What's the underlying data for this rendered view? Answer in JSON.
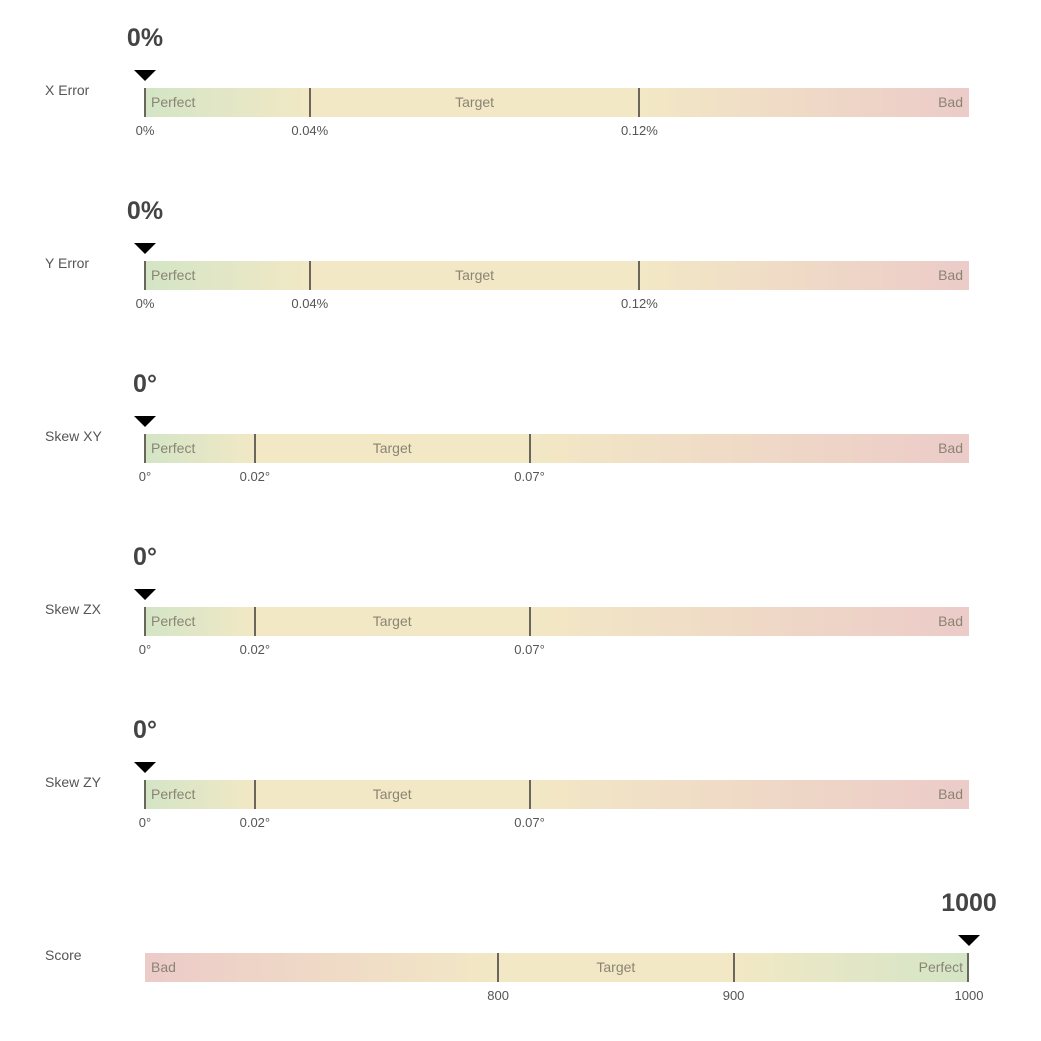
{
  "colors": {
    "perfect": "#d3e5c6",
    "target": "#f2e8c5",
    "bad": "#eccbc8"
  },
  "chart_data": [
    {
      "type": "bullet-gauge",
      "label": "X Error",
      "value": 0,
      "value_label": "0%",
      "range": [
        0,
        0.2
      ],
      "direction": "low-is-good",
      "zones": [
        "Perfect",
        "Target",
        "Bad"
      ],
      "ticks": [
        {
          "v": 0,
          "t": "0%"
        },
        {
          "v": 0.04,
          "t": "0.04%"
        },
        {
          "v": 0.12,
          "t": "0.12%"
        }
      ]
    },
    {
      "type": "bullet-gauge",
      "label": "Y Error",
      "value": 0,
      "value_label": "0%",
      "range": [
        0,
        0.2
      ],
      "direction": "low-is-good",
      "zones": [
        "Perfect",
        "Target",
        "Bad"
      ],
      "ticks": [
        {
          "v": 0,
          "t": "0%"
        },
        {
          "v": 0.04,
          "t": "0.04%"
        },
        {
          "v": 0.12,
          "t": "0.12%"
        }
      ]
    },
    {
      "type": "bullet-gauge",
      "label": "Skew XY",
      "value": 0,
      "value_label": "0°",
      "range": [
        0,
        0.15
      ],
      "direction": "low-is-good",
      "zones": [
        "Perfect",
        "Target",
        "Bad"
      ],
      "ticks": [
        {
          "v": 0,
          "t": "0°"
        },
        {
          "v": 0.02,
          "t": "0.02°"
        },
        {
          "v": 0.07,
          "t": "0.07°"
        }
      ]
    },
    {
      "type": "bullet-gauge",
      "label": "Skew ZX",
      "value": 0,
      "value_label": "0°",
      "range": [
        0,
        0.15
      ],
      "direction": "low-is-good",
      "zones": [
        "Perfect",
        "Target",
        "Bad"
      ],
      "ticks": [
        {
          "v": 0,
          "t": "0°"
        },
        {
          "v": 0.02,
          "t": "0.02°"
        },
        {
          "v": 0.07,
          "t": "0.07°"
        }
      ]
    },
    {
      "type": "bullet-gauge",
      "label": "Skew ZY",
      "value": 0,
      "value_label": "0°",
      "range": [
        0,
        0.15
      ],
      "direction": "low-is-good",
      "zones": [
        "Perfect",
        "Target",
        "Bad"
      ],
      "ticks": [
        {
          "v": 0,
          "t": "0°"
        },
        {
          "v": 0.02,
          "t": "0.02°"
        },
        {
          "v": 0.07,
          "t": "0.07°"
        }
      ]
    },
    {
      "type": "bullet-gauge",
      "label": "Score",
      "value": 1000,
      "value_label": "1000",
      "range": [
        650,
        1000
      ],
      "direction": "high-is-good",
      "zones": [
        "Bad",
        "Target",
        "Perfect"
      ],
      "ticks": [
        {
          "v": 800,
          "t": "800"
        },
        {
          "v": 900,
          "t": "900"
        },
        {
          "v": 1000,
          "t": "1000"
        }
      ]
    }
  ]
}
